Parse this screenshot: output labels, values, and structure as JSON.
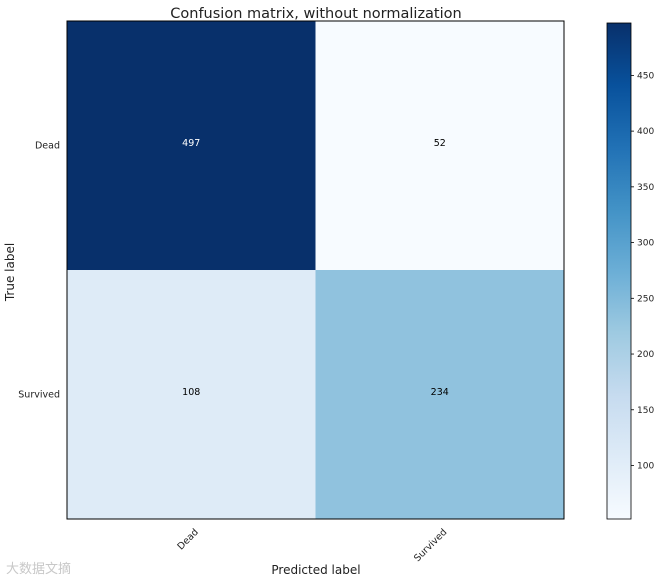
{
  "chart_data": {
    "type": "heatmap",
    "title": "Confusion matrix, without normalization",
    "xlabel": "Predicted label",
    "ylabel": "True label",
    "x_categories": [
      "Dead",
      "Survived"
    ],
    "y_categories": [
      "Dead",
      "Survived"
    ],
    "values": [
      [
        497,
        52
      ],
      [
        108,
        234
      ]
    ],
    "colormap": "Blues",
    "colorbar": {
      "ticks": [
        100,
        150,
        200,
        250,
        300,
        350,
        400,
        450
      ],
      "vmin": 52,
      "vmax": 497
    }
  },
  "watermark": "大数据文摘"
}
